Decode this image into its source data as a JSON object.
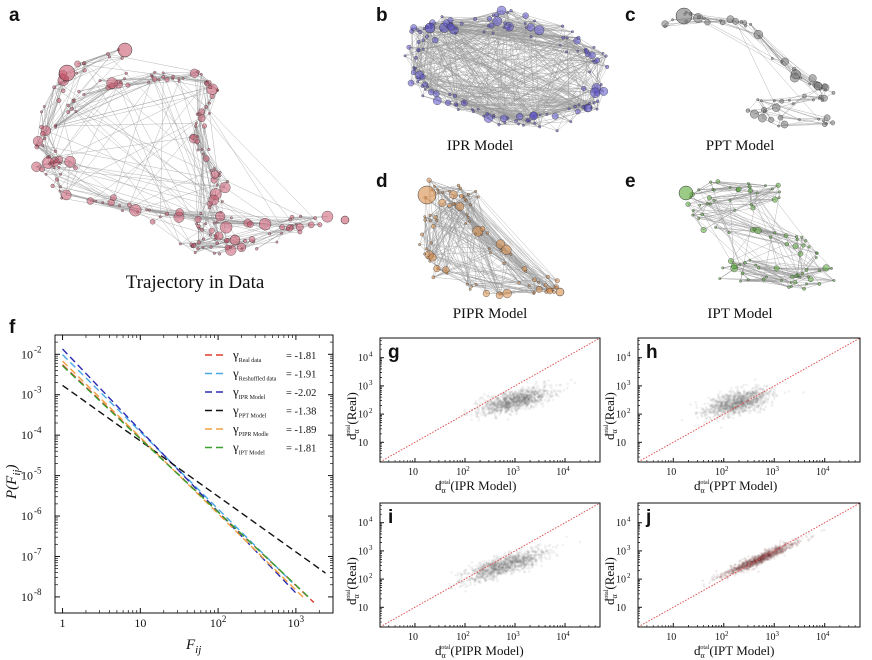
{
  "panels": {
    "a": {
      "letter": "a",
      "caption": "Trajectory in Data",
      "color": "#c95a70"
    },
    "b": {
      "letter": "b",
      "caption": "IPR Model",
      "color": "#5b52c8"
    },
    "c": {
      "letter": "c",
      "caption": "PPT Model",
      "color": "#777777"
    },
    "d": {
      "letter": "d",
      "caption": "PIPR Model",
      "color": "#d98c48"
    },
    "e": {
      "letter": "e",
      "caption": "IPT Model",
      "color": "#5aa838"
    }
  },
  "panel_f": {
    "letter": "f",
    "ylabel": "P(F",
    "ylabel_sub": "ij",
    "ylabel_close": ")",
    "xlabel": "F",
    "xlabel_sub": "ij",
    "x_ticks": [
      "1",
      "10",
      "10",
      "10"
    ],
    "x_tick_exps": [
      "",
      "",
      "2",
      "3"
    ],
    "y_ticks": [
      "10",
      "10",
      "10",
      "10",
      "10",
      "10",
      "10"
    ],
    "y_tick_exps": [
      "-2",
      "-3",
      "-4",
      "-5",
      "-6",
      "-7",
      "-8"
    ]
  },
  "chart_data": [
    {
      "type": "line",
      "id": "f",
      "xlabel": "F_ij",
      "ylabel": "P(F_ij)",
      "xscale": "log",
      "yscale": "log",
      "xlim": [
        0.8,
        3000
      ],
      "ylim": [
        4e-09,
        0.03
      ],
      "series": [
        {
          "name": "γ Real data",
          "sub": "Real data",
          "gamma": "= -1.81",
          "color": "#e03a2a",
          "x": [
            1,
            1700
          ],
          "y": [
            0.0055,
            7.3e-09
          ]
        },
        {
          "name": "γ Reshuffled data",
          "sub": "Reshuffled data",
          "gamma": "= -1.91",
          "color": "#4aa8e8",
          "x": [
            1,
            900
          ],
          "y": [
            0.0098,
            2.25e-08
          ]
        },
        {
          "name": "γ IPR Model",
          "sub": "IPR Model",
          "gamma": "= -2.02",
          "color": "#2a2ab0",
          "x": [
            1,
            1000
          ],
          "y": [
            0.0135,
            1.25e-08
          ]
        },
        {
          "name": "γ PPT Model",
          "sub": "PPT Model",
          "gamma": "= -1.38",
          "color": "#111111",
          "x": [
            1,
            2400
          ],
          "y": [
            0.0017,
            3.9e-08
          ]
        },
        {
          "name": "γ PIPR Model",
          "sub": "PIPR Modle",
          "gamma": "= -1.89",
          "color": "#f0a040",
          "x": [
            1,
            1300
          ],
          "y": [
            0.0068,
            9e-09
          ]
        },
        {
          "name": "γ IPT Model",
          "sub": "IPT Model",
          "gamma": "= -1.81",
          "color": "#3aa030",
          "x": [
            1,
            1500
          ],
          "y": [
            0.0052,
            9.4e-09
          ]
        }
      ]
    },
    {
      "type": "scatter",
      "id": "g",
      "xlabel": "d_α^total (IPR Model)",
      "ylabel": "d_α^total (Real)",
      "xscale": "log",
      "yscale": "log",
      "xlim": [
        2,
        50000
      ],
      "ylim": [
        2,
        50000
      ],
      "diagonal": true,
      "cloud_center": [
        1000,
        300
      ],
      "cloud_color": "#606868"
    },
    {
      "type": "scatter",
      "id": "h",
      "xlabel": "d_α^total (PPT Model)",
      "ylabel": "d_α^total (Real)",
      "xscale": "log",
      "yscale": "log",
      "xlim": [
        2,
        50000
      ],
      "ylim": [
        2,
        50000
      ],
      "diagonal": true,
      "cloud_center": [
        180,
        250
      ],
      "cloud_color": "#606868"
    },
    {
      "type": "scatter",
      "id": "i",
      "xlabel": "d_α^total (PIPR Model)",
      "ylabel": "d_α^total (Real)",
      "xscale": "log",
      "yscale": "log",
      "xlim": [
        2,
        50000
      ],
      "ylim": [
        2,
        50000
      ],
      "diagonal": true,
      "cloud_center": [
        600,
        300
      ],
      "cloud_color": "#606868"
    },
    {
      "type": "scatter",
      "id": "j",
      "xlabel": "d_α^total (IPT Model)",
      "ylabel": "d_α^total (Real)",
      "xscale": "log",
      "yscale": "log",
      "xlim": [
        2,
        50000
      ],
      "ylim": [
        2,
        50000
      ],
      "diagonal": true,
      "cloud_center": [
        500,
        500
      ],
      "cloud_color": "#6a3838"
    }
  ],
  "scatter_labels": {
    "ylabel_main": "d",
    "ylabel_sub": "α",
    "ylabel_sup": "total",
    "ylabel_tail": "(Real)",
    "x_ticks": [
      "10",
      "10",
      "10",
      "10"
    ],
    "x_tick_exps": [
      "",
      "2",
      "3",
      "4"
    ],
    "y_ticks": [
      "10",
      "10",
      "10",
      "10"
    ],
    "y_tick_exps": [
      "",
      "2",
      "3",
      "4"
    ],
    "g": {
      "letter": "g",
      "model": "(IPR Model)"
    },
    "h": {
      "letter": "h",
      "model": "(PPT Model)"
    },
    "i": {
      "letter": "i",
      "model": "(PIPR Model)"
    },
    "j": {
      "letter": "j",
      "model": "(IPT Model)"
    }
  }
}
